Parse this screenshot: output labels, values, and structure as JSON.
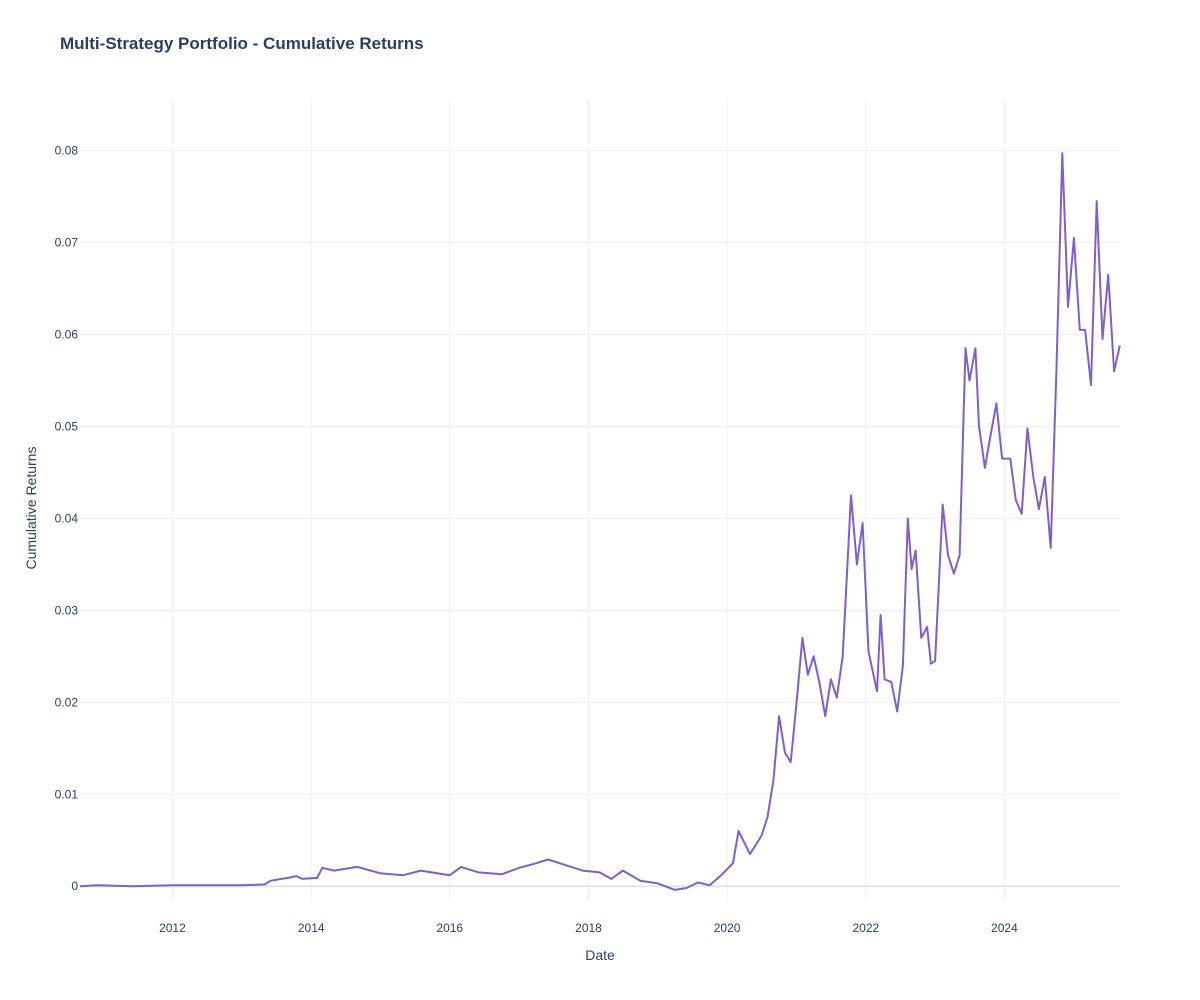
{
  "chart_data": {
    "type": "line",
    "title": "Multi-Strategy Portfolio - Cumulative Returns",
    "xlabel": "Date",
    "ylabel": "Cumulative Returns",
    "x_ticks": [
      "2012",
      "2014",
      "2016",
      "2018",
      "2020",
      "2022",
      "2024"
    ],
    "y_ticks": [
      "0",
      "0.01",
      "0.02",
      "0.03",
      "0.04",
      "0.05",
      "0.06",
      "0.07",
      "0.08"
    ],
    "xlim": [
      "2010-09-01",
      "2025-09-01"
    ],
    "ylim": [
      -0.0015,
      0.0855
    ],
    "grid": true,
    "line_color": "#8060c8",
    "series": [
      {
        "points": [
          [
            "2010-09-01",
            0.0
          ],
          [
            "2010-12-01",
            0.0001
          ],
          [
            "2011-06-01",
            0.0
          ],
          [
            "2012-01-01",
            0.0001
          ],
          [
            "2012-06-01",
            0.0001
          ],
          [
            "2013-01-01",
            0.0001
          ],
          [
            "2013-05-01",
            0.0002
          ],
          [
            "2013-06-01",
            0.0006
          ],
          [
            "2013-09-01",
            0.0009
          ],
          [
            "2013-10-15",
            0.0011
          ],
          [
            "2013-11-15",
            0.0008
          ],
          [
            "2014-02-01",
            0.0009
          ],
          [
            "2014-03-01",
            0.002
          ],
          [
            "2014-05-01",
            0.0017
          ],
          [
            "2014-09-01",
            0.0021
          ],
          [
            "2015-01-01",
            0.0014
          ],
          [
            "2015-05-01",
            0.0012
          ],
          [
            "2015-08-01",
            0.0017
          ],
          [
            "2016-01-01",
            0.0012
          ],
          [
            "2016-03-01",
            0.0021
          ],
          [
            "2016-06-01",
            0.0015
          ],
          [
            "2016-10-01",
            0.0013
          ],
          [
            "2017-01-01",
            0.002
          ],
          [
            "2017-04-01",
            0.0025
          ],
          [
            "2017-06-01",
            0.0029
          ],
          [
            "2017-09-01",
            0.0023
          ],
          [
            "2017-12-01",
            0.0017
          ],
          [
            "2018-03-01",
            0.0015
          ],
          [
            "2018-05-01",
            0.0008
          ],
          [
            "2018-07-01",
            0.0017
          ],
          [
            "2018-10-01",
            0.0006
          ],
          [
            "2019-01-01",
            0.0003
          ],
          [
            "2019-04-01",
            -0.0004
          ],
          [
            "2019-06-01",
            -0.0002
          ],
          [
            "2019-08-01",
            0.0004
          ],
          [
            "2019-10-01",
            0.0001
          ],
          [
            "2019-12-01",
            0.0012
          ],
          [
            "2020-02-01",
            0.0025
          ],
          [
            "2020-03-01",
            0.006
          ],
          [
            "2020-05-01",
            0.0035
          ],
          [
            "2020-07-01",
            0.0055
          ],
          [
            "2020-08-01",
            0.0075
          ],
          [
            "2020-09-01",
            0.0115
          ],
          [
            "2020-10-01",
            0.0185
          ],
          [
            "2020-11-01",
            0.0145
          ],
          [
            "2020-12-01",
            0.0135
          ],
          [
            "2021-01-01",
            0.02
          ],
          [
            "2021-02-01",
            0.027
          ],
          [
            "2021-03-01",
            0.023
          ],
          [
            "2021-04-01",
            0.025
          ],
          [
            "2021-05-01",
            0.0222
          ],
          [
            "2021-06-01",
            0.0185
          ],
          [
            "2021-07-01",
            0.0225
          ],
          [
            "2021-08-01",
            0.0205
          ],
          [
            "2021-09-01",
            0.025
          ],
          [
            "2021-10-15",
            0.0425
          ],
          [
            "2021-11-15",
            0.035
          ],
          [
            "2021-12-15",
            0.0395
          ],
          [
            "2022-01-15",
            0.0255
          ],
          [
            "2022-03-01",
            0.0212
          ],
          [
            "2022-03-20",
            0.0295
          ],
          [
            "2022-04-10",
            0.0225
          ],
          [
            "2022-05-15",
            0.0222
          ],
          [
            "2022-06-15",
            0.019
          ],
          [
            "2022-07-15",
            0.024
          ],
          [
            "2022-08-10",
            0.04
          ],
          [
            "2022-08-30",
            0.0345
          ],
          [
            "2022-09-20",
            0.0365
          ],
          [
            "2022-10-20",
            0.027
          ],
          [
            "2022-11-20",
            0.0282
          ],
          [
            "2022-12-10",
            0.0242
          ],
          [
            "2023-01-01",
            0.0245
          ],
          [
            "2023-02-10",
            0.0415
          ],
          [
            "2023-03-10",
            0.036
          ],
          [
            "2023-04-10",
            0.034
          ],
          [
            "2023-05-10",
            0.036
          ],
          [
            "2023-06-10",
            0.0585
          ],
          [
            "2023-07-01",
            0.055
          ],
          [
            "2023-08-01",
            0.0585
          ],
          [
            "2023-08-20",
            0.05
          ],
          [
            "2023-09-20",
            0.0455
          ],
          [
            "2023-10-20",
            0.049
          ],
          [
            "2023-11-20",
            0.0525
          ],
          [
            "2023-12-20",
            0.0465
          ],
          [
            "2024-02-01",
            0.0465
          ],
          [
            "2024-03-01",
            0.042
          ],
          [
            "2024-04-01",
            0.0405
          ],
          [
            "2024-05-01",
            0.0498
          ],
          [
            "2024-06-01",
            0.0445
          ],
          [
            "2024-07-01",
            0.041
          ],
          [
            "2024-08-01",
            0.0445
          ],
          [
            "2024-09-01",
            0.0368
          ],
          [
            "2024-10-01",
            0.056
          ],
          [
            "2024-11-01",
            0.0797
          ],
          [
            "2024-12-01",
            0.063
          ],
          [
            "2025-01-01",
            0.0705
          ],
          [
            "2025-02-01",
            0.0605
          ],
          [
            "2025-03-01",
            0.0605
          ],
          [
            "2025-04-01",
            0.0545
          ],
          [
            "2025-05-01",
            0.0745
          ],
          [
            "2025-06-01",
            0.0595
          ],
          [
            "2025-07-01",
            0.0665
          ],
          [
            "2025-08-01",
            0.056
          ],
          [
            "2025-08-31",
            0.0588
          ]
        ]
      }
    ]
  }
}
